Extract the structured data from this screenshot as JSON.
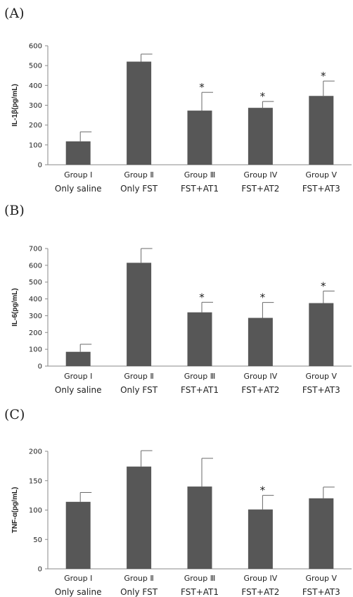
{
  "chart_data": [
    {
      "type": "bar",
      "panel_label": "(A)",
      "ylabel": "IL-1β(pg/mL)",
      "ylim": [
        0,
        600
      ],
      "yticks": [
        "0",
        "100",
        "200",
        "300",
        "400",
        "500",
        "600"
      ],
      "categories": [
        {
          "group": "Group  Ⅰ",
          "treatment": "Only saline"
        },
        {
          "group": "Group  Ⅱ",
          "treatment": "Only FST"
        },
        {
          "group": "Group  Ⅲ",
          "treatment": "FST+AT1"
        },
        {
          "group": "Group IV",
          "treatment": "FST+AT2"
        },
        {
          "group": "Group  V",
          "treatment": "FST+AT3"
        }
      ],
      "values": [
        118,
        520,
        273,
        287,
        347
      ],
      "errors": [
        48,
        38,
        92,
        32,
        75
      ],
      "significance": [
        "",
        "",
        "*",
        "*",
        "*"
      ],
      "colors": {
        "bar": "#575757",
        "text": "#222222"
      }
    },
    {
      "type": "bar",
      "panel_label": "(B)",
      "ylabel": "IL-6(pg/mL)",
      "ylim": [
        0,
        700
      ],
      "yticks": [
        "0",
        "100",
        "200",
        "300",
        "400",
        "500",
        "600",
        "700"
      ],
      "categories": [
        {
          "group": "Group  Ⅰ",
          "treatment": "Only saline"
        },
        {
          "group": "Group  Ⅱ",
          "treatment": "Only FST"
        },
        {
          "group": "Group  Ⅲ",
          "treatment": "FST+AT1"
        },
        {
          "group": "Group IV",
          "treatment": "FST+AT2"
        },
        {
          "group": "Group  V",
          "treatment": "FST+AT3"
        }
      ],
      "values": [
        85,
        615,
        320,
        287,
        375
      ],
      "errors": [
        45,
        85,
        60,
        92,
        72
      ],
      "significance": [
        "",
        "",
        "*",
        "*",
        "*"
      ],
      "colors": {
        "bar": "#575757",
        "text": "#222222"
      }
    },
    {
      "type": "bar",
      "panel_label": "(C)",
      "ylabel": "TNF-α(pg/mL)",
      "ylim": [
        0,
        200
      ],
      "yticks": [
        "0",
        "50",
        "100",
        "150",
        "200"
      ],
      "categories": [
        {
          "group": "Group  Ⅰ",
          "treatment": "Only saline"
        },
        {
          "group": "Group  Ⅱ",
          "treatment": "Only FST"
        },
        {
          "group": "Group  Ⅲ",
          "treatment": "FST+AT1"
        },
        {
          "group": "Group IV",
          "treatment": "FST+AT2"
        },
        {
          "group": "Group  V",
          "treatment": "FST+AT3"
        }
      ],
      "values": [
        114,
        174,
        140,
        101,
        120
      ],
      "errors": [
        16,
        27,
        48,
        24,
        19
      ],
      "significance": [
        "",
        "",
        "",
        "*",
        ""
      ],
      "colors": {
        "bar": "#575757",
        "text": "#222222"
      }
    }
  ]
}
